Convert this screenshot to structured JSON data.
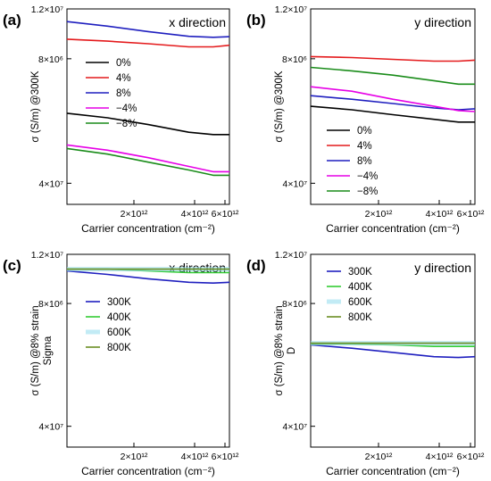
{
  "figure": {
    "shared_x_ticks": [
      "2×10¹²",
      "4×10¹²",
      "6×10¹²"
    ],
    "shared_y_ticks": [
      "1.2×10⁷",
      "8×10⁶",
      "4×10⁷"
    ]
  },
  "chart_data": [
    {
      "panel": "(a)",
      "type": "line",
      "annotation": "x direction",
      "xlabel": "Carrier concentration (cm⁻²)",
      "ylabel": "σ (S/m) @300K",
      "xticks": [
        "2×10¹²",
        "4×10¹²",
        "6×10¹²"
      ],
      "yticks": [
        "1.2×10⁷",
        "8×10⁶",
        "4×10⁷"
      ],
      "xlim": [
        0,
        6
      ],
      "ylim": [
        0,
        1
      ],
      "legend": "top-right",
      "series": [
        {
          "name": "0%",
          "color": "#000000",
          "x": [
            0.0,
            1.5,
            3.0,
            4.5,
            5.4,
            6.0
          ],
          "y": [
            0.466,
            0.443,
            0.408,
            0.369,
            0.357,
            0.357
          ]
        },
        {
          "name": "4%",
          "color": "#e41a1c",
          "x": [
            0.0,
            1.5,
            3.0,
            4.5,
            5.4,
            6.0
          ],
          "y": [
            0.845,
            0.835,
            0.822,
            0.806,
            0.806,
            0.814
          ]
        },
        {
          "name": "8%",
          "color": "#1f1fbf",
          "x": [
            0.0,
            1.5,
            3.0,
            4.5,
            5.4,
            6.0
          ],
          "y": [
            0.935,
            0.912,
            0.884,
            0.86,
            0.855,
            0.858
          ]
        },
        {
          "name": "−4%",
          "color": "#e600e6",
          "x": [
            0.0,
            1.5,
            3.0,
            4.5,
            5.4,
            6.0
          ],
          "y": [
            0.304,
            0.277,
            0.239,
            0.194,
            0.167,
            0.167
          ]
        },
        {
          "name": "−8%",
          "color": "#1a8c1a",
          "x": [
            0.0,
            1.5,
            3.0,
            4.5,
            5.4,
            6.0
          ],
          "y": [
            0.286,
            0.257,
            0.216,
            0.176,
            0.149,
            0.149
          ]
        }
      ]
    },
    {
      "panel": "(b)",
      "type": "line",
      "annotation": "y direction",
      "xlabel": "Carrier concentration (cm⁻²)",
      "ylabel": "σ (S/m) @300K",
      "xticks": [
        "2×10¹²",
        "4×10¹²",
        "6×10¹²"
      ],
      "yticks": [
        "1.2×10⁷",
        "8×10⁶",
        "4×10⁷"
      ],
      "xlim": [
        0,
        6
      ],
      "ylim": [
        0,
        1
      ],
      "legend": "bottom-left",
      "series": [
        {
          "name": "0%",
          "color": "#000000",
          "x": [
            0.0,
            1.5,
            3.0,
            4.5,
            5.4,
            6.0
          ],
          "y": [
            0.502,
            0.484,
            0.459,
            0.435,
            0.421,
            0.421
          ]
        },
        {
          "name": "4%",
          "color": "#e41a1c",
          "x": [
            0.0,
            1.5,
            3.0,
            4.5,
            5.4,
            6.0
          ],
          "y": [
            0.756,
            0.751,
            0.742,
            0.733,
            0.733,
            0.738
          ]
        },
        {
          "name": "8%",
          "color": "#1f1fbf",
          "x": [
            0.0,
            1.5,
            3.0,
            4.5,
            5.4,
            6.0
          ],
          "y": [
            0.556,
            0.538,
            0.516,
            0.493,
            0.484,
            0.489
          ]
        },
        {
          "name": "−4%",
          "color": "#e600e6",
          "x": [
            0.0,
            1.5,
            3.0,
            4.5,
            5.4,
            6.0
          ],
          "y": [
            0.602,
            0.579,
            0.538,
            0.502,
            0.48,
            0.475
          ]
        },
        {
          "name": "−8%",
          "color": "#1a8c1a",
          "x": [
            0.0,
            1.5,
            3.0,
            4.5,
            5.4,
            6.0
          ],
          "y": [
            0.701,
            0.683,
            0.661,
            0.633,
            0.615,
            0.615
          ]
        }
      ]
    },
    {
      "panel": "(c)",
      "type": "line",
      "annotation": "x direction",
      "xlabel": "Carrier concentration (cm⁻²)",
      "ylabel": "σ (S/m) @8% strain",
      "sublabel": "Sigma",
      "xticks": [
        "2×10¹²",
        "4×10¹²",
        "6×10¹²"
      ],
      "yticks": [
        "1.2×10⁷",
        "8×10⁶",
        "4×10⁷"
      ],
      "xlim": [
        0,
        6
      ],
      "ylim": [
        0,
        1
      ],
      "legend": "left",
      "series": [
        {
          "name": "300K",
          "color": "#1f1fbf",
          "x": [
            0.0,
            1.5,
            3.0,
            4.5,
            5.4,
            6.0
          ],
          "y": [
            0.914,
            0.896,
            0.873,
            0.855,
            0.851,
            0.855
          ]
        },
        {
          "name": "400K",
          "color": "#33cc33",
          "x": [
            0.0,
            1.5,
            3.0,
            4.5,
            5.4,
            6.0
          ],
          "y": [
            0.923,
            0.923,
            0.914,
            0.905,
            0.905,
            0.905
          ]
        },
        {
          "name": "600K",
          "color": "#99ddee",
          "x": [
            0.0,
            1.5,
            3.0,
            4.5,
            5.4,
            6.0
          ],
          "y": [
            0.923,
            0.923,
            0.923,
            0.923,
            0.923,
            0.923
          ]
        },
        {
          "name": "800K",
          "color": "#6b8e23",
          "x": [
            0.0,
            1.5,
            3.0,
            4.5,
            5.4,
            6.0
          ],
          "y": [
            0.923,
            0.923,
            0.923,
            0.923,
            0.923,
            0.923
          ]
        }
      ]
    },
    {
      "panel": "(d)",
      "type": "line",
      "annotation": "y direction",
      "xlabel": "Carrier concentration (cm⁻²)",
      "ylabel": "σ (S/m) @8% strain",
      "sublabel": "D",
      "xticks": [
        "2×10¹²",
        "4×10¹²",
        "6×10¹²"
      ],
      "yticks": [
        "1.2×10⁷",
        "8×10⁶",
        "4×10⁷"
      ],
      "xlim": [
        0,
        6
      ],
      "ylim": [
        0,
        1
      ],
      "legend": "top-left",
      "series": [
        {
          "name": "300K",
          "color": "#1f1fbf",
          "x": [
            0.0,
            1.5,
            3.0,
            4.5,
            5.4,
            6.0
          ],
          "y": [
            0.53,
            0.513,
            0.491,
            0.469,
            0.465,
            0.469
          ]
        },
        {
          "name": "400K",
          "color": "#33cc33",
          "x": [
            0.0,
            1.5,
            3.0,
            4.5,
            5.4,
            6.0
          ],
          "y": [
            0.535,
            0.535,
            0.53,
            0.522,
            0.522,
            0.522
          ]
        },
        {
          "name": "600K",
          "color": "#99ddee",
          "x": [
            0.0,
            1.5,
            3.0,
            4.5,
            5.4,
            6.0
          ],
          "y": [
            0.539,
            0.539,
            0.539,
            0.539,
            0.539,
            0.539
          ]
        },
        {
          "name": "800K",
          "color": "#6b8e23",
          "x": [
            0.0,
            1.5,
            3.0,
            4.5,
            5.4,
            6.0
          ],
          "y": [
            0.539,
            0.539,
            0.539,
            0.539,
            0.539,
            0.539
          ]
        }
      ]
    }
  ]
}
